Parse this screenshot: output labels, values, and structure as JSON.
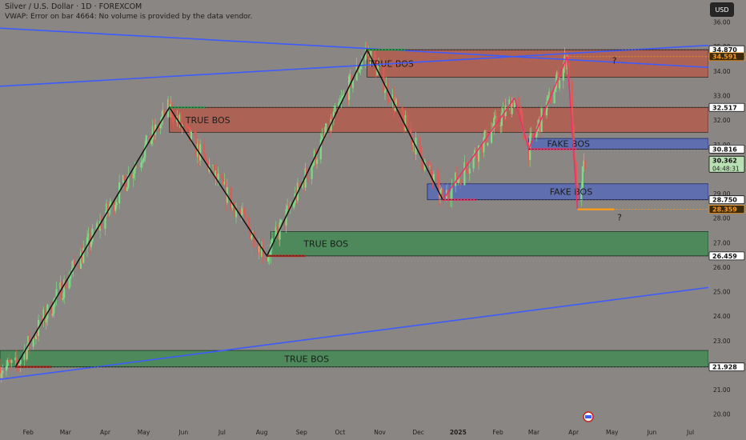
{
  "header": {
    "title": "Silver / U.S. Dollar · 1D · FOREXCOM",
    "vwap_note": "VWAP: Error on bar 4664: No volume is provided by the data vendor.",
    "currency": "USD"
  },
  "colors": {
    "background": "#8a8683",
    "bullish": "#7ddb86",
    "bearish": "#e05a52",
    "trend_line": "#3d5bff",
    "red_zone": "#b35b4c",
    "green_zone": "#3f8a52",
    "blue_zone": "#5569b8",
    "pink_line": "#e8336b",
    "orange": "#ff9a1a"
  },
  "chart_data": {
    "type": "candlestick",
    "x_axis": {
      "tick_labels": [
        "Feb",
        "Mar",
        "Apr",
        "May",
        "Jun",
        "Jul",
        "Aug",
        "Sep",
        "Oct",
        "Nov",
        "Dec",
        "2025",
        "Feb",
        "Mar",
        "Apr",
        "May",
        "Jun",
        "Jul"
      ],
      "tick_dates": [
        "2024-02-01",
        "2024-03-01",
        "2024-04-01",
        "2024-05-01",
        "2024-06-01",
        "2024-07-01",
        "2024-08-01",
        "2024-09-01",
        "2024-10-01",
        "2024-11-01",
        "2024-12-01",
        "2025-01-01",
        "2025-02-01",
        "2025-03-01",
        "2025-04-01",
        "2025-05-01",
        "2025-06-01",
        "2025-07-01"
      ],
      "range": [
        "2024-01-10",
        "2025-07-15"
      ]
    },
    "y_axis": {
      "ticks": [
        20.0,
        21.0,
        22.0,
        23.0,
        24.0,
        25.0,
        26.0,
        27.0,
        28.0,
        29.0,
        30.0,
        31.0,
        32.0,
        33.0,
        34.0,
        35.0,
        36.0
      ],
      "range": [
        19.6,
        36.9
      ],
      "position": "right"
    },
    "price_tags": [
      {
        "value": "34.870",
        "style": "dark"
      },
      {
        "value": "34.591",
        "style": "orange"
      },
      {
        "value": "32.517",
        "style": "dark"
      },
      {
        "value": "30.816",
        "style": "dark"
      },
      {
        "value": "30.362",
        "sub": "04:48:31",
        "style": "current"
      },
      {
        "value": "28.750",
        "style": "dark"
      },
      {
        "value": "28.359",
        "style": "orange"
      },
      {
        "value": "26.459",
        "style": "dark"
      },
      {
        "value": "21.928",
        "style": "dark"
      }
    ],
    "zones": [
      {
        "label": "TRUE BOS",
        "color": "red",
        "start": "2024-10-22",
        "end": "2025-07-15",
        "low": 33.75,
        "high": 34.87
      },
      {
        "label": "TRUE BOS",
        "color": "red",
        "start": "2024-05-21",
        "end": "2025-07-15",
        "low": 31.5,
        "high": 32.517
      },
      {
        "label": "FAKE BOS",
        "color": "blue",
        "start": "2025-02-25",
        "end": "2025-07-15",
        "low": 30.816,
        "high": 31.25
      },
      {
        "label": "FAKE BOS",
        "color": "blue",
        "start": "2024-12-08",
        "end": "2025-07-15",
        "low": 28.75,
        "high": 29.4
      },
      {
        "label": "TRUE BOS",
        "color": "green",
        "start": "2024-08-08",
        "end": "2025-07-15",
        "low": 26.459,
        "high": 27.45
      },
      {
        "label": "TRUE BOS",
        "color": "green",
        "start": "2024-01-10",
        "end": "2025-07-15",
        "low": 21.928,
        "high": 22.6
      }
    ],
    "swing_path": [
      {
        "date": "2024-01-22",
        "value": 21.93
      },
      {
        "date": "2024-05-21",
        "value": 32.517
      },
      {
        "date": "2024-08-05",
        "value": 26.459
      },
      {
        "date": "2024-10-22",
        "value": 34.87
      },
      {
        "date": "2024-12-20",
        "value": 28.75
      }
    ],
    "pink_path": [
      {
        "date": "2024-12-20",
        "value": 28.75
      },
      {
        "date": "2025-02-14",
        "value": 32.9
      },
      {
        "date": "2025-02-25",
        "value": 30.816
      },
      {
        "date": "2025-03-27",
        "value": 34.591
      },
      {
        "date": "2025-04-04",
        "value": 28.359
      }
    ],
    "trend_lines": [
      {
        "from": {
          "date": "2024-01-10",
          "value": 35.75
        },
        "to": {
          "date": "2025-07-15",
          "value": 34.15
        }
      },
      {
        "from": {
          "date": "2024-01-10",
          "value": 33.38
        },
        "to": {
          "date": "2025-07-15",
          "value": 35.05
        }
      },
      {
        "from": {
          "date": "2024-01-10",
          "value": 21.42
        },
        "to": {
          "date": "2025-07-15",
          "value": 25.17
        }
      }
    ],
    "target_markers": [
      {
        "label": "?",
        "date": "2025-05-01",
        "value": 34.3
      },
      {
        "label": "?",
        "date": "2025-05-05",
        "value": 27.9
      }
    ],
    "last_price": 30.362
  }
}
